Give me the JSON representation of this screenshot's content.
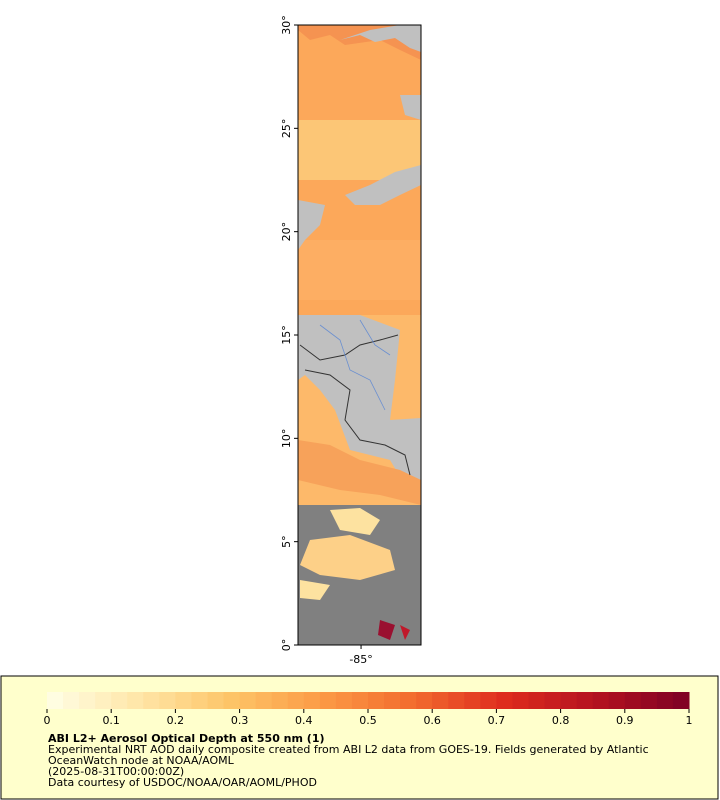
{
  "chart_data": {
    "type": "map",
    "title": "ABI L2+ Aerosol Optical Depth at 550 nm (1)",
    "description": [
      "Experimental NRT AOD daily composite created from ABI L2 data from GOES-19. Fields generated by Atlantic",
      "OceanWatch node at NOAA/AOML",
      "(2025-08-31T00:00:00Z)",
      "Data courtesy of USDOC/NOAA/OAR/AOML/PHOD"
    ],
    "xlim": [
      -88.05,
      -82.1
    ],
    "xticks": [
      {
        "value": -85,
        "label": "-85°"
      }
    ],
    "ylim": [
      0,
      30
    ],
    "yticks": [
      {
        "value": 0,
        "label": "0°"
      },
      {
        "value": 5,
        "label": "5°"
      },
      {
        "value": 10,
        "label": "10°"
      },
      {
        "value": 15,
        "label": "15°"
      },
      {
        "value": 20,
        "label": "20°"
      },
      {
        "value": 25,
        "label": "25°"
      },
      {
        "value": 30,
        "label": "30°"
      }
    ],
    "colorbar": {
      "lim": [
        0,
        1
      ],
      "ticks": [
        0,
        0.1,
        0.2,
        0.3,
        0.4,
        0.5,
        0.6,
        0.7,
        0.8,
        0.9,
        1
      ],
      "colors": [
        "#ffffe6",
        "#ffe6a8",
        "#fdc567",
        "#fc9a45",
        "#f26b2e",
        "#de2b1e",
        "#b3121f",
        "#7d0025"
      ]
    }
  }
}
